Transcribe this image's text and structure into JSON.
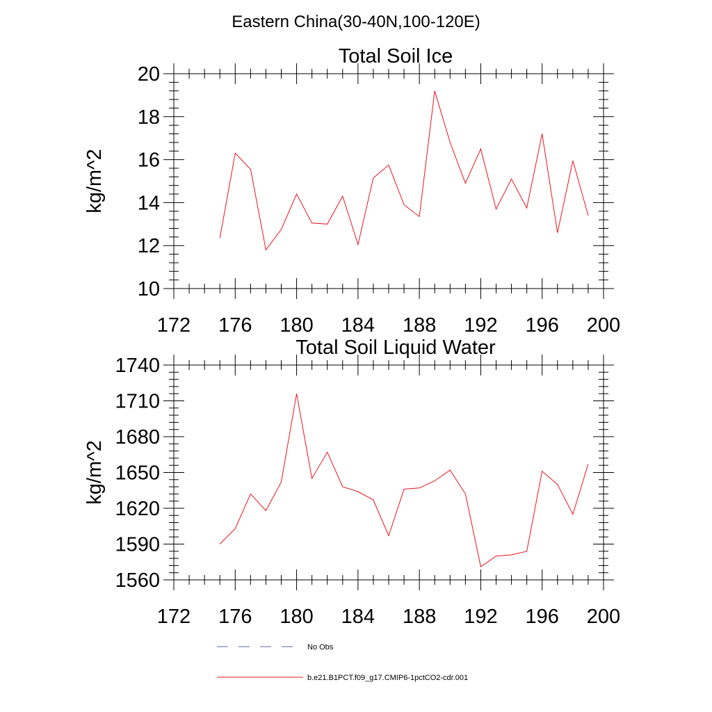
{
  "figure": {
    "title": "Eastern China(30-40N,100-120E)"
  },
  "colors": {
    "model_line": "#e8141e",
    "obs_line": "#5a6a9a",
    "axis": "#000000",
    "background": "#ffffff"
  },
  "legend": {
    "entries": [
      {
        "label": "No Obs",
        "style": "dashed",
        "color": "#5a6a9a"
      },
      {
        "label": "b.e21.B1PCT.f09_g17.CMIP6-1pctCO2-cdr.001",
        "style": "solid",
        "color": "#e8141e"
      }
    ]
  },
  "chart_data": [
    {
      "type": "line",
      "title": "Total Soil Ice",
      "xlabel": "",
      "ylabel": "kg/m^2",
      "xlim": [
        172,
        200
      ],
      "ylim": [
        10,
        20
      ],
      "xticks": [
        172,
        176,
        180,
        184,
        188,
        192,
        196,
        200
      ],
      "yticks": [
        10,
        12,
        14,
        16,
        18,
        20
      ],
      "grid": false,
      "series": [
        {
          "name": "b.e21.B1PCT.f09_g17.CMIP6-1pctCO2-cdr.001",
          "x": [
            175,
            176,
            177,
            178,
            179,
            180,
            181,
            182,
            183,
            184,
            185,
            186,
            187,
            188,
            189,
            190,
            191,
            192,
            193,
            194,
            195,
            196,
            197,
            198,
            199
          ],
          "y": [
            12.35,
            16.3,
            15.55,
            11.8,
            12.75,
            14.4,
            13.05,
            13.0,
            14.3,
            12.05,
            15.15,
            15.75,
            13.9,
            13.35,
            19.2,
            16.8,
            14.9,
            16.5,
            13.7,
            15.1,
            13.75,
            17.2,
            12.6,
            15.95,
            13.4
          ]
        }
      ]
    },
    {
      "type": "line",
      "title": "Total Soil Liquid Water",
      "xlabel": "",
      "ylabel": "kg/m^2",
      "xlim": [
        172,
        200
      ],
      "ylim": [
        1560,
        1740
      ],
      "xticks": [
        172,
        176,
        180,
        184,
        188,
        192,
        196,
        200
      ],
      "yticks": [
        1560,
        1590,
        1620,
        1650,
        1680,
        1710,
        1740
      ],
      "grid": false,
      "series": [
        {
          "name": "b.e21.B1PCT.f09_g17.CMIP6-1pctCO2-cdr.001",
          "x": [
            175,
            176,
            177,
            178,
            179,
            180,
            181,
            182,
            183,
            184,
            185,
            186,
            187,
            188,
            189,
            190,
            191,
            192,
            193,
            194,
            195,
            196,
            197,
            198,
            199
          ],
          "y": [
            1590,
            1603,
            1632,
            1618,
            1642,
            1716,
            1645,
            1667,
            1638,
            1634,
            1627,
            1597,
            1636,
            1637,
            1643,
            1652,
            1632,
            1571,
            1580,
            1581,
            1584,
            1651,
            1640,
            1615,
            1657
          ]
        }
      ]
    }
  ]
}
